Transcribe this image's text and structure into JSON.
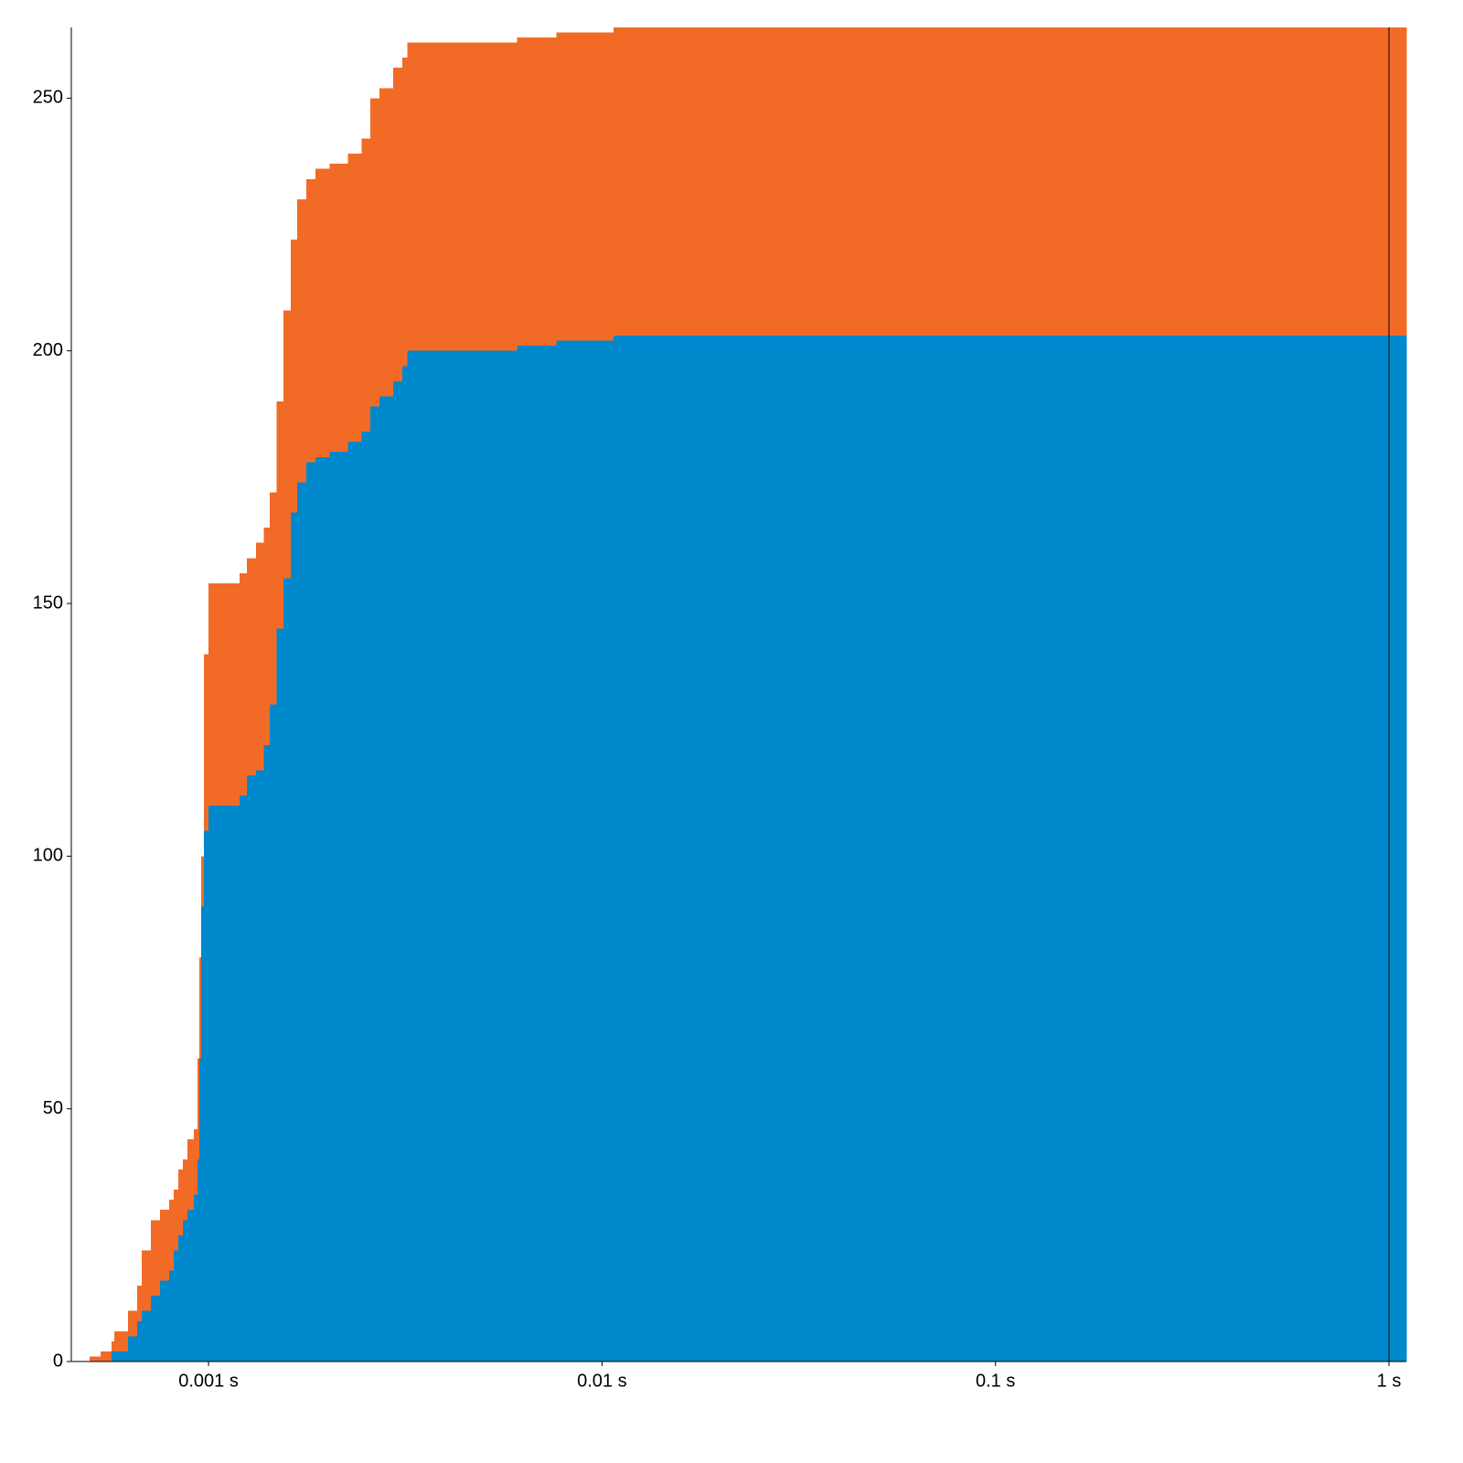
{
  "chart_data": {
    "type": "stacked-step-area",
    "log_x": true,
    "x": [
      0.000498,
      0.000531,
      0.000567,
      0.000576,
      0.000624,
      0.000659,
      0.000676,
      0.000714,
      0.000753,
      0.000794,
      0.000816,
      0.000838,
      0.000861,
      0.000884,
      0.000918,
      0.000938,
      0.000948,
      0.000958,
      0.000974,
      0.001,
      0.0012,
      0.00125,
      0.00132,
      0.00138,
      0.00143,
      0.00149,
      0.00155,
      0.00162,
      0.00168,
      0.00177,
      0.00187,
      0.00203,
      0.00226,
      0.00245,
      0.00258,
      0.00272,
      0.00295,
      0.00311,
      0.0032,
      0.00608,
      0.00765,
      0.0107
    ],
    "series": [
      {
        "color": "#0088cc",
        "values": [
          0,
          0,
          2,
          2,
          5,
          8,
          10,
          13,
          16,
          18,
          22,
          25,
          28,
          30,
          33,
          40,
          60,
          90,
          105,
          110,
          112,
          116,
          117,
          122,
          130,
          145,
          155,
          168,
          174,
          178,
          179,
          180,
          182,
          184,
          189,
          191,
          194,
          197,
          200,
          201,
          202,
          203
        ]
      },
      {
        "color": "#f26b26",
        "values": [
          1,
          2,
          2,
          4,
          5,
          7,
          12,
          15,
          14,
          14,
          12,
          13,
          12,
          14,
          13,
          20,
          20,
          10,
          35,
          44,
          44,
          43,
          45,
          43,
          42,
          45,
          53,
          54,
          56,
          56,
          57,
          57,
          57,
          58,
          61,
          61,
          62,
          61,
          61,
          61,
          61,
          61
        ]
      }
    ],
    "xlim": [
      0.000448,
      1.107
    ],
    "xticks": [
      {
        "value": 0.001,
        "label": "0.001 s"
      },
      {
        "value": 0.01,
        "label": "0.01 s"
      },
      {
        "value": 0.1,
        "label": "0.1 s"
      },
      {
        "value": 1,
        "label": "1 s"
      }
    ],
    "ylim": [
      0,
      264
    ],
    "yticks": [
      0,
      50,
      100,
      150,
      200,
      250
    ],
    "reference_line_x": 1
  }
}
